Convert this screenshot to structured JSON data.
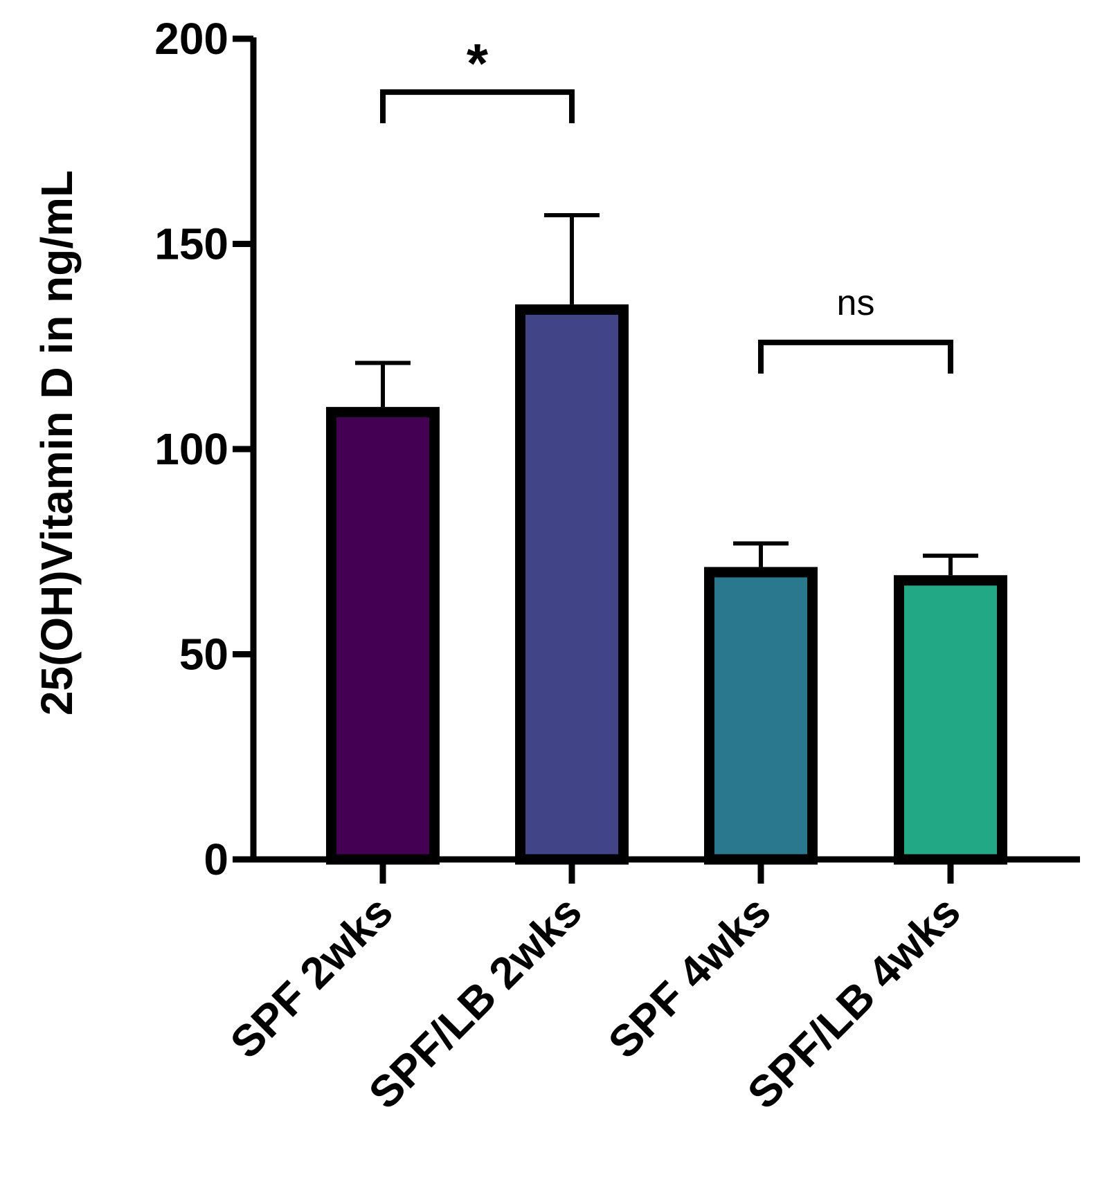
{
  "chart_data": {
    "type": "bar",
    "title": "",
    "xlabel": "",
    "ylabel": "25(OH)Vitamin D in ng/mL",
    "ylim": [
      0,
      200
    ],
    "yticks": [
      0,
      50,
      100,
      150,
      200
    ],
    "grid": false,
    "categories": [
      "SPF 2wks",
      "SPF/LB 2wks",
      "SPF 4wks",
      "SPF/LB 4wks"
    ],
    "values": [
      109,
      134,
      70,
      68
    ],
    "error_upper": [
      121,
      157,
      77,
      74
    ],
    "colors": [
      "#440154",
      "#414487",
      "#2a788e",
      "#22a884"
    ],
    "annotations": [
      {
        "from": 0,
        "to": 1,
        "label": "*",
        "level": 187
      },
      {
        "from": 2,
        "to": 3,
        "label": "ns",
        "level": 126
      }
    ]
  }
}
